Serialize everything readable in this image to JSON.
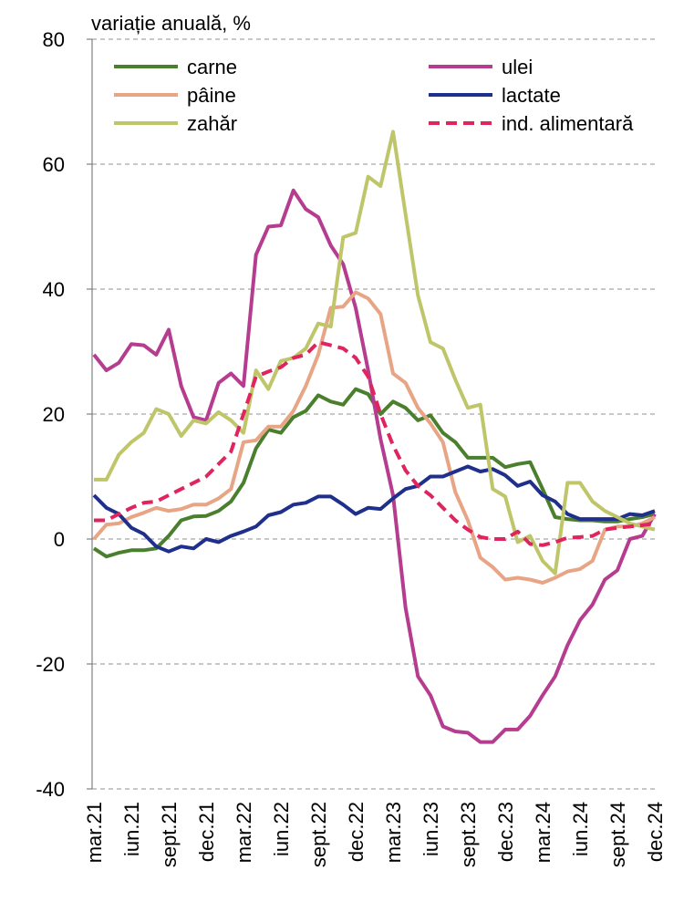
{
  "chart_data": {
    "type": "line",
    "title": "variație anuală, %",
    "categories": [
      "mar.21",
      null,
      null,
      "iun.21",
      null,
      null,
      "sept.21",
      null,
      null,
      "dec.21",
      null,
      null,
      "mar.22",
      null,
      null,
      "iun.22",
      null,
      null,
      "sept.22",
      null,
      null,
      "dec.22",
      null,
      null,
      "mar.23",
      null,
      null,
      "iun.23",
      null,
      null,
      "sept.23",
      null,
      null,
      "dec.23",
      null,
      null,
      "mar.24",
      null,
      null,
      "iun.24",
      null,
      null,
      "sept.24",
      null,
      null,
      "dec.24"
    ],
    "series": [
      {
        "name": "carne",
        "color": "#4a7f2e",
        "dashed": false,
        "values": [
          -1.5,
          -2.8,
          -2.2,
          -1.8,
          -1.8,
          -1.5,
          0.5,
          3,
          3.6,
          3.7,
          4.5,
          6,
          9,
          14.5,
          17.5,
          17,
          19.5,
          20.5,
          23,
          22,
          21.5,
          24,
          23.2,
          20,
          22,
          21,
          19,
          19.8,
          17,
          15.5,
          13,
          13,
          13,
          11.5,
          12,
          12.3,
          8,
          3.5,
          3.2,
          3,
          3,
          2.8,
          2.8,
          3.2,
          3.5,
          4
        ]
      },
      {
        "name": "ulei",
        "color": "#b63c8f",
        "dashed": false,
        "values": [
          29.5,
          27,
          28.2,
          31.2,
          31,
          29.5,
          33.5,
          24.5,
          19.5,
          19,
          25,
          26.5,
          24.5,
          45.5,
          50,
          50.2,
          55.8,
          52.8,
          51.5,
          47,
          44,
          37,
          27,
          16,
          7,
          -11,
          -22,
          -25,
          -30,
          -30.8,
          -31,
          -32.5,
          -32.5,
          -30.5,
          -30.5,
          -28.3,
          -25,
          -22,
          -17,
          -13,
          -10.5,
          -6.5,
          -5,
          0,
          0.5,
          4
        ]
      },
      {
        "name": "pâine",
        "color": "#e8a585",
        "dashed": false,
        "values": [
          0,
          2.3,
          2.5,
          3.5,
          4.2,
          5,
          4.5,
          4.8,
          5.5,
          5.5,
          6.5,
          8,
          15.5,
          15.8,
          18,
          18,
          20.5,
          24.5,
          29.5,
          37,
          37.2,
          39.5,
          38.5,
          36,
          26.5,
          25,
          21,
          18.5,
          15.5,
          7.5,
          3,
          -3,
          -4.5,
          -6.5,
          -6.2,
          -6.5,
          -7,
          -6.2,
          -5.2,
          -4.8,
          -3.5,
          1.5,
          2,
          2,
          2.5,
          3.5
        ]
      },
      {
        "name": "lactate",
        "color": "#1f2f8c",
        "dashed": false,
        "values": [
          7,
          5,
          4,
          1.8,
          0.8,
          -1.2,
          -2,
          -1.2,
          -1.5,
          0,
          -0.5,
          0.5,
          1.2,
          2,
          3.8,
          4.3,
          5.5,
          5.8,
          6.8,
          6.8,
          5.5,
          4,
          5,
          4.8,
          6.5,
          8,
          8.5,
          10,
          10,
          10.8,
          11.6,
          10.8,
          11.2,
          10.2,
          8.5,
          9.2,
          7,
          6,
          4,
          3.2,
          3.2,
          3.2,
          3.2,
          4,
          3.8,
          4.5
        ]
      },
      {
        "name": "zahăr",
        "color": "#bfc66a",
        "dashed": false,
        "values": [
          9.5,
          9.5,
          13.5,
          15.5,
          17,
          20.8,
          20,
          16.5,
          19,
          18.5,
          20.3,
          19,
          17,
          27,
          24,
          28.5,
          29,
          30.5,
          34.5,
          34,
          48.3,
          49,
          58,
          56.5,
          65.2,
          52,
          39,
          31.5,
          30.5,
          25.5,
          21,
          21.5,
          8,
          6.8,
          -0.5,
          0.5,
          -3.5,
          -5.5,
          9,
          9,
          6,
          4.5,
          3.5,
          2.5,
          2,
          1.5
        ]
      },
      {
        "name": "ind. alimentară",
        "color": "#e0245e",
        "dashed": true,
        "values": [
          3,
          3,
          4,
          5,
          5.8,
          6,
          7,
          8,
          9,
          10,
          12,
          14,
          20,
          26,
          26.8,
          27.5,
          29,
          29.5,
          31.5,
          31,
          30.5,
          29,
          26,
          20,
          15,
          11,
          8.5,
          7,
          5,
          3,
          1.5,
          0.3,
          0,
          0,
          1.2,
          -0.8,
          -1,
          -0.5,
          0.2,
          0.3,
          0.5,
          1.5,
          1.8,
          2,
          2.2,
          2.5
        ]
      }
    ],
    "ylim": [
      -40,
      80
    ],
    "yticks": [
      -40,
      -20,
      0,
      20,
      40,
      60,
      80
    ],
    "grid": true
  }
}
